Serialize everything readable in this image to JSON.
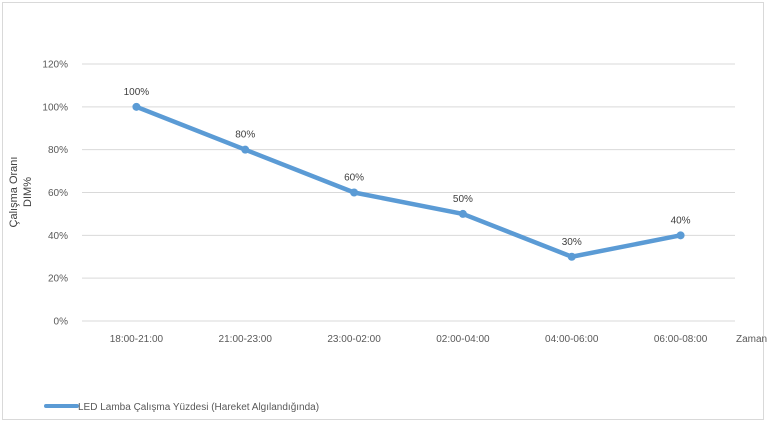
{
  "chart_data": {
    "type": "line",
    "categories": [
      "18:00-21:00",
      "21:00-23:00",
      "23:00-02:00",
      "02:00-04:00",
      "04:00-06:00",
      "06:00-08:00"
    ],
    "series": [
      {
        "name": "LED Lamba Çalışma Yüzdesi (Hareket Algılandığında)",
        "values": [
          100,
          80,
          60,
          50,
          30,
          40
        ],
        "data_labels": [
          "100%",
          "80%",
          "60%",
          "50%",
          "30%",
          "40%"
        ],
        "color": "#5b9bd5"
      }
    ],
    "xlabel": "Zaman",
    "ylabel_lines": [
      "Çalışma Oranı",
      "DIM%"
    ],
    "ylim": [
      0,
      120
    ],
    "yticks": [
      0,
      20,
      40,
      60,
      80,
      100,
      120
    ],
    "ytick_labels": [
      "0%",
      "20%",
      "40%",
      "60%",
      "80%",
      "100%",
      "120%"
    ],
    "grid": true,
    "legend_position": "bottom-left",
    "colors": {
      "series": "#5b9bd5",
      "grid": "#d9d9d9",
      "text": "#595959"
    }
  }
}
